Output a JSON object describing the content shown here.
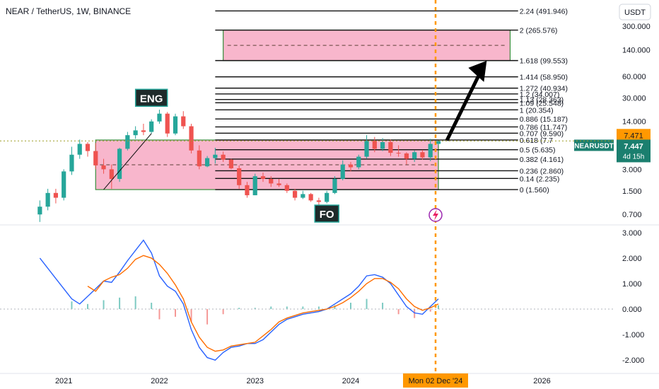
{
  "header": {
    "symbol_title": "NEAR / TetherUS, 1W, BINANCE",
    "currency_button": "USDT"
  },
  "colors": {
    "up": "#26a69a",
    "down": "#ef5350",
    "zone_fill": "#f48fb1",
    "zone_border": "#388e3c",
    "macd": "#2962ff",
    "signal": "#ff6d00",
    "crosshair": "#ff9800",
    "badge": "#1b7f6f"
  },
  "icons": {
    "alert_icon": "flash-icon"
  },
  "chart_data": [
    {
      "type": "candlestick",
      "title": "NEAR / TetherUS, 1W, BINANCE",
      "y_scale": "log",
      "yticks": [
        "300.000",
        "140.000",
        "60.000",
        "30.000",
        "14.000",
        "3.000",
        "1.500",
        "0.700"
      ],
      "ylim": [
        0.5,
        700
      ],
      "xlim": [
        "2020-05",
        "2026-10"
      ],
      "xticks": [
        "2021",
        "2022",
        "2023",
        "2024",
        "2026"
      ],
      "x_cursor_label": "Mon 02 Dec '24",
      "last_price": {
        "label": "NEARUSDT",
        "value": "7.447",
        "value_num": 7.447,
        "countdown": "4d 15h"
      },
      "crosshair_price": {
        "value": "7.471",
        "value_num": 7.471
      },
      "fib_levels": [
        {
          "ratio": 2.24,
          "label": "2.24 (491.946)",
          "price": 491.946
        },
        {
          "ratio": 2,
          "label": "2 (265.576)",
          "price": 265.576
        },
        {
          "ratio": 1.618,
          "label": "1.618 (99.553)",
          "price": 99.553
        },
        {
          "ratio": 1.414,
          "label": "1.414 (58.950)",
          "price": 58.95
        },
        {
          "ratio": 1.272,
          "label": "1.272 (40.934)",
          "price": 40.934
        },
        {
          "ratio": 1.2,
          "label": "1.2 (34.007)",
          "price": 34.007
        },
        {
          "ratio": 1.13,
          "label": "1.13 (28.363)",
          "price": 28.363
        },
        {
          "ratio": 1.09,
          "label": "1.09 (25.548)",
          "price": 25.548
        },
        {
          "ratio": 1,
          "label": "1 (20.354)",
          "price": 20.354
        },
        {
          "ratio": 0.886,
          "label": "0.886 (15.187)",
          "price": 15.187
        },
        {
          "ratio": 0.786,
          "label": "0.786 (11.747)",
          "price": 11.747
        },
        {
          "ratio": 0.707,
          "label": "0.707 (9.590)",
          "price": 9.59
        },
        {
          "ratio": 0.618,
          "label": "0.618 (7.7",
          "price": 7.7
        },
        {
          "ratio": 0.5,
          "label": "0.5 (5.635)",
          "price": 5.635
        },
        {
          "ratio": 0.382,
          "label": "0.382 (4.161)",
          "price": 4.161
        },
        {
          "ratio": 0.236,
          "label": "0.236 (2.860)",
          "price": 2.86
        },
        {
          "ratio": 0.14,
          "label": "0.14 (2.235)",
          "price": 2.235
        },
        {
          "ratio": 0,
          "label": "0 (1.560)",
          "price": 1.56
        }
      ],
      "annotations": [
        {
          "text": "ENG",
          "at": [
            "2021-12",
            30
          ]
        },
        {
          "text": "FO",
          "at": [
            "2023-10",
            0.72
          ]
        }
      ],
      "zones": [
        {
          "name": "range-zone",
          "x": [
            "2021-05",
            "2024-12"
          ],
          "y": [
            1.56,
            7.7
          ]
        },
        {
          "name": "target-zone",
          "x": [
            "2022-09",
            "2025-09"
          ],
          "y": [
            99.553,
            265.576
          ]
        }
      ],
      "candles": [
        [
          "2020-10",
          0.7,
          1.1,
          0.55,
          0.9
        ],
        [
          "2020-11",
          0.9,
          1.6,
          0.8,
          1.4
        ],
        [
          "2020-12",
          1.4,
          1.6,
          1.0,
          1.2
        ],
        [
          "2021-01",
          1.2,
          3.0,
          1.1,
          2.8
        ],
        [
          "2021-02",
          2.8,
          6.2,
          2.5,
          4.8
        ],
        [
          "2021-03",
          4.8,
          7.8,
          4.2,
          6.8
        ],
        [
          "2021-04",
          6.8,
          7.2,
          4.5,
          5.4
        ],
        [
          "2021-05",
          5.4,
          7.0,
          3.0,
          3.4
        ],
        [
          "2021-06",
          3.4,
          4.2,
          2.6,
          3.0
        ],
        [
          "2021-07",
          3.0,
          3.5,
          1.6,
          2.2
        ],
        [
          "2021-08",
          2.2,
          6.0,
          2.0,
          5.8
        ],
        [
          "2021-09",
          5.8,
          10.0,
          5.5,
          9.0
        ],
        [
          "2021-10",
          9.0,
          12.0,
          8.0,
          10.5
        ],
        [
          "2021-11",
          10.5,
          13.0,
          9.0,
          10.0
        ],
        [
          "2021-12",
          10.0,
          15.0,
          9.5,
          14.0
        ],
        [
          "2022-01",
          14.0,
          20.5,
          13.0,
          18.0
        ],
        [
          "2022-02",
          18.0,
          19.0,
          8.5,
          9.5
        ],
        [
          "2022-03",
          9.5,
          18.0,
          9.0,
          16.5
        ],
        [
          "2022-04",
          16.5,
          19.5,
          11.0,
          12.0
        ],
        [
          "2022-05",
          12.0,
          13.0,
          5.0,
          5.5
        ],
        [
          "2022-06",
          5.5,
          6.5,
          3.0,
          3.3
        ],
        [
          "2022-07",
          3.3,
          4.6,
          3.2,
          4.3
        ],
        [
          "2022-08",
          4.3,
          6.0,
          3.6,
          4.8
        ],
        [
          "2022-09",
          4.8,
          5.3,
          3.8,
          4.1
        ],
        [
          "2022-10",
          4.1,
          4.2,
          3.0,
          3.1
        ],
        [
          "2022-11",
          3.1,
          3.4,
          1.6,
          1.8
        ],
        [
          "2022-12",
          1.8,
          2.0,
          1.2,
          1.3
        ],
        [
          "2023-01",
          1.3,
          2.6,
          1.3,
          2.4
        ],
        [
          "2023-02",
          2.4,
          2.7,
          2.0,
          2.2
        ],
        [
          "2023-03",
          2.2,
          2.4,
          1.7,
          1.9
        ],
        [
          "2023-04",
          1.9,
          2.2,
          1.7,
          1.8
        ],
        [
          "2023-05",
          1.8,
          1.9,
          1.4,
          1.5
        ],
        [
          "2023-06",
          1.5,
          1.6,
          1.1,
          1.2
        ],
        [
          "2023-07",
          1.2,
          1.5,
          1.15,
          1.35
        ],
        [
          "2023-08",
          1.35,
          1.4,
          1.05,
          1.1
        ],
        [
          "2023-09",
          1.1,
          1.2,
          0.95,
          1.05
        ],
        [
          "2023-10",
          1.05,
          1.5,
          1.0,
          1.4
        ],
        [
          "2023-11",
          1.4,
          2.4,
          1.35,
          2.2
        ],
        [
          "2023-12",
          2.2,
          4.0,
          2.1,
          3.5
        ],
        [
          "2024-01",
          3.5,
          3.8,
          2.8,
          3.2
        ],
        [
          "2024-02",
          3.2,
          4.8,
          3.0,
          4.5
        ],
        [
          "2024-03",
          4.5,
          9.0,
          4.2,
          7.5
        ],
        [
          "2024-04",
          7.5,
          8.5,
          5.2,
          5.8
        ],
        [
          "2024-05",
          5.8,
          8.2,
          5.4,
          7.2
        ],
        [
          "2024-06",
          7.2,
          7.8,
          4.6,
          5.1
        ],
        [
          "2024-07",
          5.1,
          6.5,
          4.5,
          5.0
        ],
        [
          "2024-08",
          5.0,
          5.2,
          3.5,
          4.2
        ],
        [
          "2024-09",
          4.2,
          5.5,
          3.8,
          5.2
        ],
        [
          "2024-10",
          5.2,
          5.6,
          4.1,
          4.4
        ],
        [
          "2024-11",
          4.4,
          8.0,
          3.9,
          6.8
        ],
        [
          "2024-12",
          6.8,
          7.6,
          6.5,
          7.447
        ]
      ]
    },
    {
      "type": "macd",
      "yticks": [
        "3.000",
        "2.000",
        "1.000",
        "0.000",
        "-1.000",
        "-2.000"
      ],
      "ylim": [
        -2.3,
        3.3
      ],
      "xlim": [
        "2020-05",
        "2026-10"
      ],
      "series": [
        {
          "key": "macd",
          "points": [
            [
              "2020-10",
              2.0
            ],
            [
              "2020-12",
              1.2
            ],
            [
              "2021-02",
              0.4
            ],
            [
              "2021-03",
              0.2
            ],
            [
              "2021-04",
              0.5
            ],
            [
              "2021-05",
              0.8
            ],
            [
              "2021-06",
              1.1
            ],
            [
              "2021-07",
              1.05
            ],
            [
              "2021-08",
              1.45
            ],
            [
              "2021-09",
              1.9
            ],
            [
              "2021-10",
              2.3
            ],
            [
              "2021-11",
              2.7
            ],
            [
              "2021-12",
              2.2
            ],
            [
              "2022-01",
              1.3
            ],
            [
              "2022-02",
              0.9
            ],
            [
              "2022-03",
              0.7
            ],
            [
              "2022-04",
              0.2
            ],
            [
              "2022-05",
              -0.8
            ],
            [
              "2022-06",
              -1.5
            ],
            [
              "2022-07",
              -1.9
            ],
            [
              "2022-08",
              -2.0
            ],
            [
              "2022-09",
              -1.7
            ],
            [
              "2022-10",
              -1.5
            ],
            [
              "2022-11",
              -1.45
            ],
            [
              "2022-12",
              -1.35
            ],
            [
              "2023-01",
              -1.35
            ],
            [
              "2023-02",
              -1.2
            ],
            [
              "2023-03",
              -0.9
            ],
            [
              "2023-04",
              -0.6
            ],
            [
              "2023-05",
              -0.4
            ],
            [
              "2023-06",
              -0.3
            ],
            [
              "2023-07",
              -0.2
            ],
            [
              "2023-08",
              -0.15
            ],
            [
              "2023-09",
              -0.1
            ],
            [
              "2023-10",
              0.0
            ],
            [
              "2023-11",
              0.2
            ],
            [
              "2023-12",
              0.4
            ],
            [
              "2024-01",
              0.6
            ],
            [
              "2024-02",
              0.9
            ],
            [
              "2024-03",
              1.3
            ],
            [
              "2024-04",
              1.35
            ],
            [
              "2024-05",
              1.25
            ],
            [
              "2024-06",
              1.0
            ],
            [
              "2024-07",
              0.55
            ],
            [
              "2024-08",
              0.1
            ],
            [
              "2024-09",
              -0.15
            ],
            [
              "2024-10",
              -0.2
            ],
            [
              "2024-11",
              0.1
            ],
            [
              "2024-12",
              0.4
            ]
          ]
        },
        {
          "key": "signal",
          "points": [
            [
              "2021-04",
              0.9
            ],
            [
              "2021-05",
              0.7
            ],
            [
              "2021-06",
              1.1
            ],
            [
              "2021-07",
              1.25
            ],
            [
              "2021-08",
              1.35
            ],
            [
              "2021-09",
              1.6
            ],
            [
              "2021-10",
              1.95
            ],
            [
              "2021-11",
              2.1
            ],
            [
              "2021-12",
              2.0
            ],
            [
              "2022-01",
              1.75
            ],
            [
              "2022-02",
              1.4
            ],
            [
              "2022-03",
              0.95
            ],
            [
              "2022-04",
              0.4
            ],
            [
              "2022-05",
              -0.5
            ],
            [
              "2022-06",
              -1.1
            ],
            [
              "2022-07",
              -1.5
            ],
            [
              "2022-08",
              -1.65
            ],
            [
              "2022-09",
              -1.6
            ],
            [
              "2022-10",
              -1.45
            ],
            [
              "2022-11",
              -1.4
            ],
            [
              "2022-12",
              -1.35
            ],
            [
              "2023-01",
              -1.3
            ],
            [
              "2023-02",
              -1.05
            ],
            [
              "2023-03",
              -0.8
            ],
            [
              "2023-04",
              -0.5
            ],
            [
              "2023-05",
              -0.35
            ],
            [
              "2023-06",
              -0.25
            ],
            [
              "2023-07",
              -0.15
            ],
            [
              "2023-08",
              -0.1
            ],
            [
              "2023-09",
              -0.05
            ],
            [
              "2023-10",
              0.0
            ],
            [
              "2023-11",
              0.1
            ],
            [
              "2023-12",
              0.25
            ],
            [
              "2024-01",
              0.45
            ],
            [
              "2024-02",
              0.7
            ],
            [
              "2024-03",
              1.0
            ],
            [
              "2024-04",
              1.2
            ],
            [
              "2024-05",
              1.2
            ],
            [
              "2024-06",
              1.05
            ],
            [
              "2024-07",
              0.8
            ],
            [
              "2024-08",
              0.4
            ],
            [
              "2024-09",
              0.1
            ],
            [
              "2024-10",
              -0.05
            ],
            [
              "2024-11",
              0.05
            ],
            [
              "2024-12",
              0.2
            ]
          ]
        }
      ],
      "histogram": [
        [
          "2021-02",
          0.3
        ],
        [
          "2021-04",
          0.2
        ],
        [
          "2021-06",
          0.35
        ],
        [
          "2021-08",
          0.45
        ],
        [
          "2021-10",
          0.5
        ],
        [
          "2021-12",
          0.25
        ],
        [
          "2022-01",
          -0.4
        ],
        [
          "2022-03",
          -0.3
        ],
        [
          "2022-05",
          -0.5
        ],
        [
          "2022-07",
          -0.6
        ],
        [
          "2022-09",
          -0.2
        ],
        [
          "2022-11",
          0.05
        ],
        [
          "2023-01",
          0.05
        ],
        [
          "2023-03",
          0.1
        ],
        [
          "2023-05",
          0.1
        ],
        [
          "2023-07",
          0.1
        ],
        [
          "2023-09",
          0.1
        ],
        [
          "2023-11",
          0.15
        ],
        [
          "2024-01",
          0.25
        ],
        [
          "2024-03",
          0.4
        ],
        [
          "2024-05",
          0.25
        ],
        [
          "2024-07",
          -0.2
        ],
        [
          "2024-09",
          -0.35
        ],
        [
          "2024-11",
          -0.1
        ],
        [
          "2024-12",
          0.15
        ]
      ]
    }
  ]
}
